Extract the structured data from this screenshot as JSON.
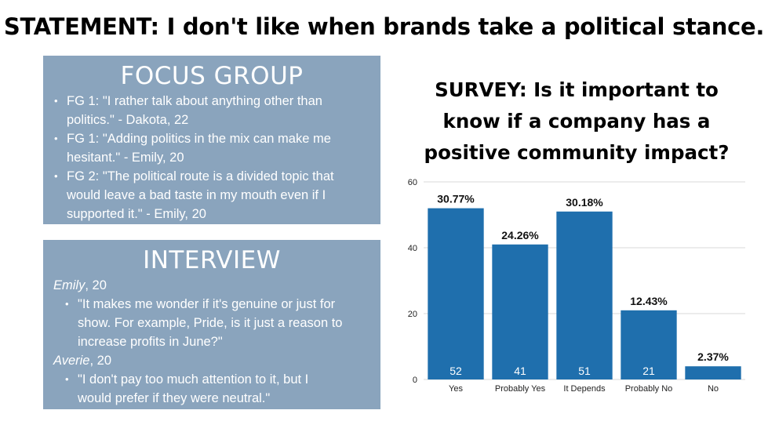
{
  "statement": "STATEMENT: I don't like when brands take a political stance.",
  "focus_group": {
    "title": "FOCUS GROUP",
    "items": [
      [
        "FG 1: \"I rather talk about anything other than",
        "politics.\" - Dakota, 22"
      ],
      [
        "FG 1: \"Adding politics in the mix can make me",
        "hesitant.\" - Emily, 20"
      ],
      [
        "FG 2: \"The political route is a divided topic that",
        "would leave a bad taste in my mouth even if I",
        "supported it.\" - Emily, 20"
      ]
    ]
  },
  "interview": {
    "title": "INTERVIEW",
    "people": [
      {
        "name": "Emily",
        "age": ", 20",
        "quote": [
          "\"It makes me wonder if it's genuine or just for",
          "show. For example, Pride, is it just a reason to",
          "increase profits in June?\""
        ]
      },
      {
        "name": "Averie",
        "age": ", 20",
        "quote": [
          "\"I don't pay too much attention to it, but I",
          "would prefer if they were neutral.\""
        ]
      }
    ]
  },
  "survey_title": [
    "SURVEY: Is it important to",
    "know if a company has a",
    "positive community impact?"
  ],
  "chart_data": {
    "type": "bar",
    "categories": [
      "Yes",
      "Probably Yes",
      "It Depends",
      "Probably No",
      "No"
    ],
    "values": [
      52,
      41,
      51,
      21,
      4
    ],
    "value_labels": [
      "52",
      "41",
      "51",
      "21",
      ""
    ],
    "percent_labels": [
      "30.77%",
      "24.26%",
      "30.18%",
      "12.43%",
      "2.37%"
    ],
    "ylim": [
      0,
      60
    ],
    "yticks": [
      0,
      20,
      40,
      60
    ],
    "bar_color": "#1f6fad",
    "grid": true,
    "title": "",
    "xlabel": "",
    "ylabel": ""
  }
}
